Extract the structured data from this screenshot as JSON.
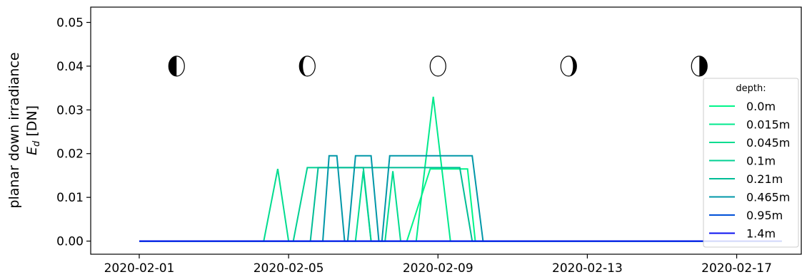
{
  "chart_data": {
    "type": "line",
    "ylabel_line1": "planar down irradiance",
    "ylabel_line2_symbol": "E",
    "ylabel_line2_subscript": "d",
    "ylabel_line2_unit": " [DN]",
    "ylim": [
      -0.003,
      0.0535
    ],
    "yticks": [
      0.0,
      0.01,
      0.02,
      0.03,
      0.04,
      0.05
    ],
    "ytick_labels": [
      "0.00",
      "0.01",
      "0.02",
      "0.03",
      "0.04",
      "0.05"
    ],
    "xlim": [
      "2020-01-30T16:48",
      "2020-02-18T17:31"
    ],
    "xticks": [
      "2020-02-01",
      "2020-02-05",
      "2020-02-09",
      "2020-02-13",
      "2020-02-17"
    ],
    "xtick_labels": [
      "2020-02-01",
      "2020-02-05",
      "2020-02-09",
      "2020-02-13",
      "2020-02-17"
    ],
    "grid": false,
    "legend": {
      "title": "depth:",
      "placement": "right"
    },
    "moon_phases": [
      {
        "date": "2020-02-02T00:00",
        "value": 0.04,
        "phase": "first-quarter"
      },
      {
        "date": "2020-02-05T12:00",
        "value": 0.04,
        "phase": "waxing-gibbous"
      },
      {
        "date": "2020-02-09T00:00",
        "value": 0.04,
        "phase": "full-moon"
      },
      {
        "date": "2020-02-12T12:00",
        "value": 0.04,
        "phase": "waning-gibbous"
      },
      {
        "date": "2020-02-16T00:00",
        "value": 0.04,
        "phase": "last-quarter"
      }
    ],
    "series": [
      {
        "name": "0.0m",
        "color": "#00f58a",
        "points": [
          [
            "2020-02-01T00:00",
            0
          ],
          [
            "2020-02-08T04:00",
            0
          ],
          [
            "2020-02-08T19:00",
            0.0165
          ],
          [
            "2020-02-09T19:00",
            0.0165
          ],
          [
            "2020-02-10T00:00",
            0
          ],
          [
            "2020-02-18T05:00",
            0
          ]
        ]
      },
      {
        "name": "0.015m",
        "color": "#00e98c",
        "points": [
          [
            "2020-02-01T00:00",
            0
          ],
          [
            "2020-02-08T10:00",
            0
          ],
          [
            "2020-02-08T21:00",
            0.033
          ],
          [
            "2020-02-09T08:00",
            0
          ],
          [
            "2020-02-18T05:00",
            0
          ]
        ]
      },
      {
        "name": "0.045m",
        "color": "#00dc8f",
        "points": [
          [
            "2020-02-01T00:00",
            0
          ],
          [
            "2020-02-04T08:00",
            0
          ],
          [
            "2020-02-04T17:00",
            0.0165
          ],
          [
            "2020-02-05T00:00",
            0
          ],
          [
            "2020-02-06T19:00",
            0
          ],
          [
            "2020-02-07T00:00",
            0.016
          ],
          [
            "2020-02-07T05:00",
            0
          ],
          [
            "2020-02-07T14:00",
            0
          ],
          [
            "2020-02-07T19:00",
            0.016
          ],
          [
            "2020-02-08T00:00",
            0
          ],
          [
            "2020-02-18T05:00",
            0
          ]
        ]
      },
      {
        "name": "0.1m",
        "color": "#00d092",
        "points": [
          [
            "2020-02-01T00:00",
            0
          ],
          [
            "2020-02-05T03:00",
            0
          ],
          [
            "2020-02-05T12:00",
            0.0168
          ],
          [
            "2020-02-07T00:00",
            0.0168
          ],
          [
            "2020-02-07T05:00",
            0
          ],
          [
            "2020-02-18T05:00",
            0
          ]
        ]
      },
      {
        "name": "0.21m",
        "color": "#00bd96",
        "points": [
          [
            "2020-02-01T00:00",
            0
          ],
          [
            "2020-02-05T14:00",
            0
          ],
          [
            "2020-02-05T19:00",
            0.0168
          ],
          [
            "2020-02-09T14:00",
            0.0168
          ],
          [
            "2020-02-09T22:00",
            0
          ],
          [
            "2020-02-18T05:00",
            0
          ]
        ]
      },
      {
        "name": "0.465m",
        "color": "#0097a8",
        "points": [
          [
            "2020-02-01T00:00",
            0
          ],
          [
            "2020-02-05T22:00",
            0
          ],
          [
            "2020-02-06T02:00",
            0.0195
          ],
          [
            "2020-02-06T07:00",
            0.0195
          ],
          [
            "2020-02-06T12:00",
            0
          ],
          [
            "2020-02-06T14:00",
            0
          ],
          [
            "2020-02-06T19:00",
            0.0195
          ],
          [
            "2020-02-07T05:00",
            0.0195
          ],
          [
            "2020-02-07T10:00",
            0
          ],
          [
            "2020-02-07T12:00",
            0
          ],
          [
            "2020-02-07T17:00",
            0.0195
          ],
          [
            "2020-02-09T22:00",
            0.0195
          ],
          [
            "2020-02-10T05:00",
            0
          ],
          [
            "2020-02-18T05:00",
            0
          ]
        ]
      },
      {
        "name": "0.95m",
        "color": "#0050d8",
        "points": [
          [
            "2020-02-01T00:00",
            0
          ],
          [
            "2020-02-18T05:00",
            0
          ]
        ]
      },
      {
        "name": "1.4m",
        "color": "#0a10f0",
        "points": [
          [
            "2020-02-01T00:00",
            0
          ],
          [
            "2020-02-18T05:00",
            0
          ]
        ]
      }
    ]
  }
}
